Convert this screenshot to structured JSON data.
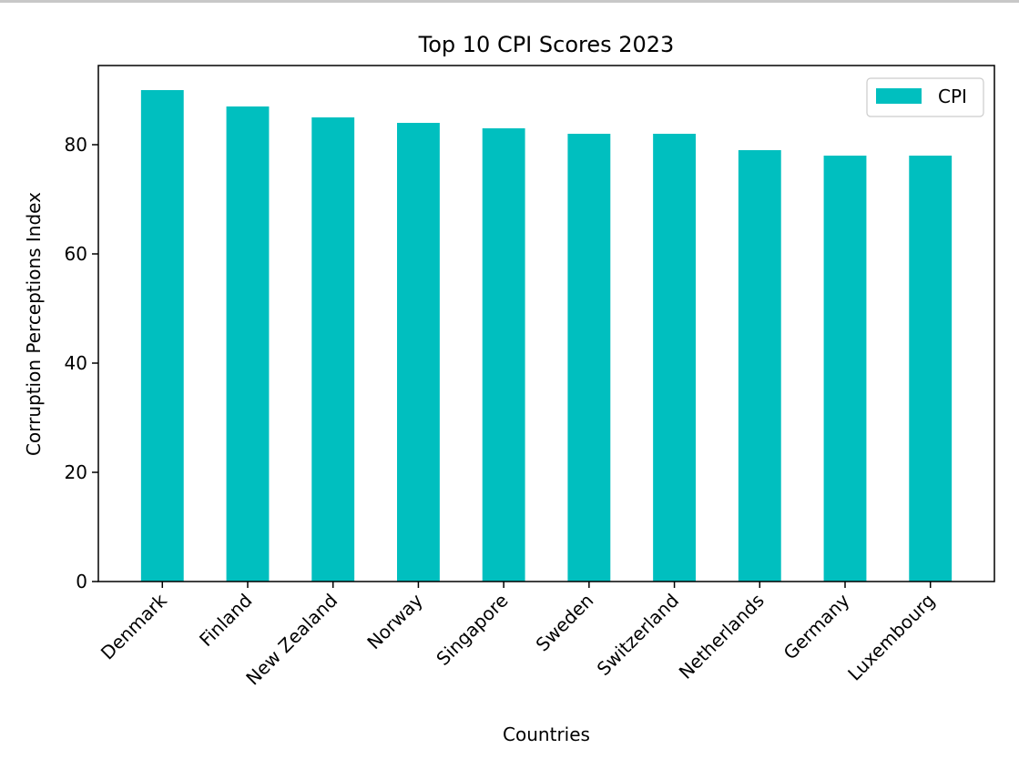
{
  "chart_data": {
    "type": "bar",
    "title": "Top 10 CPI Scores 2023",
    "xlabel": "Countries",
    "ylabel": "Corruption Perceptions Index",
    "categories": [
      "Denmark",
      "Finland",
      "New Zealand",
      "Norway",
      "Singapore",
      "Sweden",
      "Switzerland",
      "Netherlands",
      "Germany",
      "Luxembourg"
    ],
    "series": [
      {
        "name": "CPI",
        "values": [
          90,
          87,
          85,
          84,
          83,
          82,
          82,
          79,
          78,
          78
        ],
        "color": "#00bfbf"
      }
    ],
    "ylim": [
      0,
      94.5
    ],
    "yticks": [
      0,
      20,
      40,
      60,
      80
    ],
    "grid": false,
    "legend": "top-right"
  }
}
